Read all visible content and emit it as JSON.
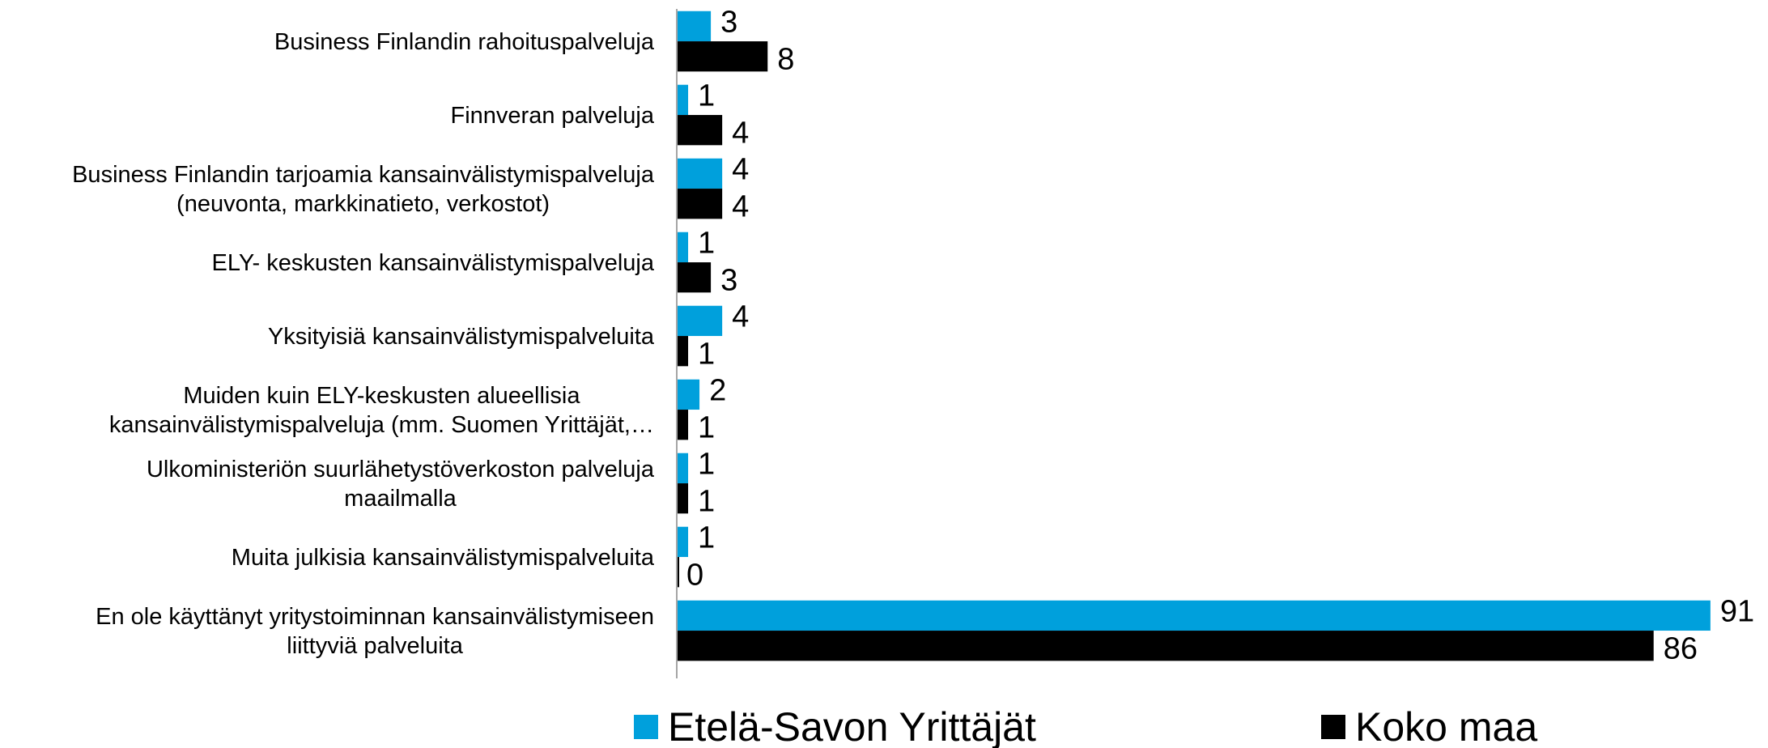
{
  "chart_data": {
    "type": "bar",
    "orientation": "horizontal",
    "categories": [
      "Business Finlandin rahoituspalveluja",
      "Finnveran palveluja",
      "Business Finlandin tarjoamia kansainvälistymispalveluja\n(neuvonta, markkinatieto, verkostot)",
      "ELY- keskusten kansainvälistymispalveluja",
      "Yksityisiä kansainvälistymispalveluita",
      "Muiden kuin ELY-keskusten alueellisia\nkansainvälistymispalveluja (mm. Suomen Yrittäjät,…",
      "Ulkoministeriön suurlähetystöverkoston palveluja\nmaailmalla",
      "Muita julkisia kansainvälistymispalveluita",
      "En ole käyttänyt yritystoiminnan kansainvälistymiseen\nliittyviä palveluita"
    ],
    "series": [
      {
        "name": "Etelä-Savon Yrittäjät",
        "color": "#00a0dc",
        "values": [
          3,
          1,
          4,
          1,
          4,
          2,
          1,
          1,
          91
        ]
      },
      {
        "name": "Koko maa",
        "color": "#000000",
        "values": [
          8,
          4,
          4,
          3,
          1,
          1,
          1,
          0,
          86
        ]
      }
    ],
    "xlim": [
      0,
      95
    ],
    "legend": "bottom"
  }
}
